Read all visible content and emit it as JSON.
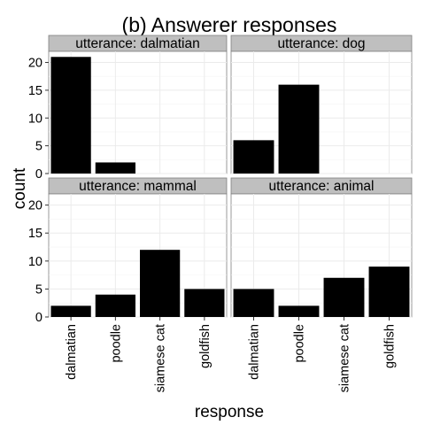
{
  "chart_data": {
    "type": "bar",
    "title": "(b) Answerer responses",
    "xlabel": "response",
    "ylabel": "count",
    "categories": [
      "dalmatian",
      "poodle",
      "siamese cat",
      "goldfish"
    ],
    "ylim": [
      0,
      22
    ],
    "yticks": [
      0,
      5,
      10,
      15,
      20
    ],
    "grid": true,
    "facets": [
      {
        "strip": "utterance: dalmatian",
        "values": [
          21,
          2,
          0,
          0
        ]
      },
      {
        "strip": "utterance: dog",
        "values": [
          6,
          16,
          0,
          0
        ]
      },
      {
        "strip": "utterance: mammal",
        "values": [
          2,
          4,
          12,
          5
        ]
      },
      {
        "strip": "utterance: animal",
        "values": [
          5,
          2,
          7,
          9
        ]
      }
    ]
  }
}
